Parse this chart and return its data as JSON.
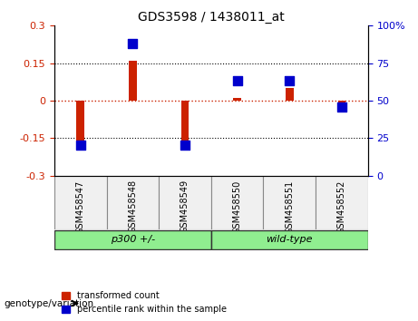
{
  "title": "GDS3598 / 1438011_at",
  "samples": [
    "GSM458547",
    "GSM458548",
    "GSM458549",
    "GSM458550",
    "GSM458551",
    "GSM458552"
  ],
  "red_values": [
    -0.2,
    0.16,
    -0.2,
    0.01,
    0.05,
    -0.01
  ],
  "blue_values": [
    20,
    88,
    20,
    63,
    63,
    46
  ],
  "groups": [
    {
      "label": "p300 +/-",
      "start": 0,
      "end": 3,
      "color": "#90ee90"
    },
    {
      "label": "wild-type",
      "start": 3,
      "end": 6,
      "color": "#90ee90"
    }
  ],
  "group_label": "genotype/variation",
  "ylim_left": [
    -0.3,
    0.3
  ],
  "ylim_right": [
    0,
    100
  ],
  "yticks_left": [
    -0.3,
    -0.15,
    0,
    0.15,
    0.3
  ],
  "yticks_right": [
    0,
    25,
    50,
    75,
    100
  ],
  "red_color": "#cc2200",
  "blue_color": "#0000cc",
  "bar_width": 0.15,
  "blue_marker_size": 60,
  "legend_items": [
    "transformed count",
    "percentile rank within the sample"
  ],
  "hline_color": "#cc2200",
  "grid_color": "black",
  "bg_color": "#f0f0f0"
}
